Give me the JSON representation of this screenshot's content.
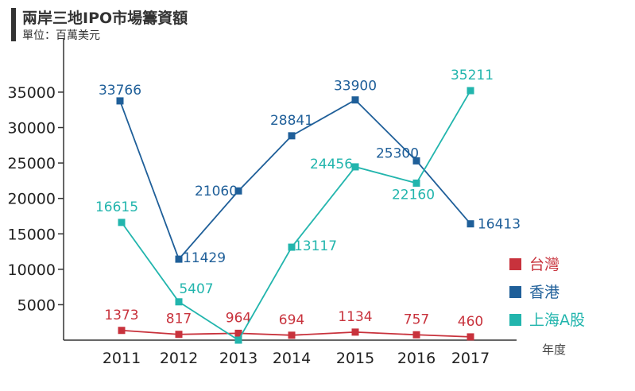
{
  "title": "兩岸三地IPO市場籌資額",
  "subtitle": "單位：百萬美元",
  "chart_data": {
    "type": "line",
    "x": [
      "2011",
      "2012",
      "2013",
      "2014",
      "2015",
      "2016",
      "2017"
    ],
    "xlabel": "年度",
    "ylabel": "",
    "ylim": [
      0,
      40000
    ],
    "yticks": [
      5000,
      10000,
      15000,
      20000,
      25000,
      30000,
      35000
    ],
    "grid": false,
    "legend_position": "bottom-right",
    "series": [
      {
        "name": "台灣",
        "color": "#c8323c",
        "values": [
          1373,
          817,
          964,
          694,
          1134,
          757,
          460
        ],
        "labels": [
          "1373",
          "817",
          "964",
          "694",
          "1134",
          "757",
          "460"
        ]
      },
      {
        "name": "香港",
        "color": "#1f5f99",
        "values": [
          33766,
          11429,
          21060,
          28841,
          33900,
          25300,
          16413
        ],
        "labels": [
          "33766",
          "11429",
          "21060",
          "28841",
          "33900",
          "25300",
          "16413"
        ]
      },
      {
        "name": "上海A股",
        "color": "#22b5ad",
        "values": [
          16615,
          5407,
          0,
          13117,
          24456,
          22160,
          35211
        ],
        "labels": [
          "16615",
          "5407",
          "",
          "13117",
          "24456",
          "22160",
          "35211"
        ]
      }
    ]
  }
}
